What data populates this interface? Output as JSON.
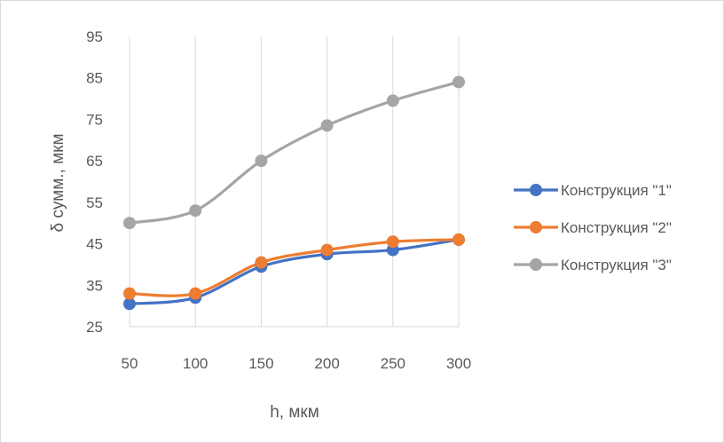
{
  "chart_data": {
    "type": "line",
    "title": "",
    "xlabel": "h, мкм",
    "ylabel": "δ сумм., мкм",
    "x": [
      50,
      100,
      150,
      200,
      250,
      300
    ],
    "xlim": [
      50,
      300
    ],
    "ylim": [
      25,
      95
    ],
    "yticks": [
      25,
      35,
      45,
      55,
      65,
      75,
      85,
      95
    ],
    "xticks": [
      50,
      100,
      150,
      200,
      250,
      300
    ],
    "grid": "vertical",
    "smooth": true,
    "legend_position": "right",
    "series": [
      {
        "name": "Конструкция \"1\"",
        "color": "#4472C4",
        "values": [
          30.5,
          32,
          39.5,
          42.5,
          43.5,
          46
        ]
      },
      {
        "name": "Конструкция \"2\"",
        "color": "#ED7D31",
        "values": [
          33,
          33,
          40.5,
          43.5,
          45.5,
          46
        ]
      },
      {
        "name": "Конструкция \"3\"",
        "color": "#A5A5A5",
        "values": [
          50,
          53,
          65,
          73.5,
          79.5,
          84
        ]
      }
    ]
  }
}
